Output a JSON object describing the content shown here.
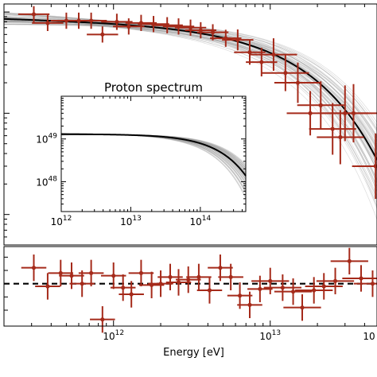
{
  "colors": {
    "data": "#a52a1a",
    "model": "#000000",
    "band": "#9a9a9a",
    "zero": "#000000"
  },
  "chart_data": [
    {
      "type": "scatter",
      "panel": "main-spectrum",
      "xscale": "log",
      "yscale": "log",
      "xlim": [
        200000000000,
        48000000000000
      ],
      "ylim": [
        0.005,
        1.2
      ],
      "xlabel": "",
      "ylabel": "",
      "x": [
        310000000000.0,
        380000000000.0,
        500000000000.0,
        600000000000.0,
        720000000000.0,
        850000000000.0,
        1050000000000.0,
        1250000000000.0,
        1500000000000.0,
        1800000000000.0,
        2200000000000.0,
        2600000000000.0,
        3100000000000.0,
        3600000000000.0,
        4300000000000.0,
        5200000000000.0,
        6200000000000.0,
        7400000000000.0,
        8800000000000.0,
        10500000000000.0,
        12500000000000.0,
        15000000000000.0,
        18000000000000.0,
        21000000000000.0,
        25000000000000.0,
        30000000000000.0,
        47000000000000.0,
        34000000000000.0,
        28000000000000.0
      ],
      "y": [
        0.95,
        0.78,
        0.82,
        0.82,
        0.82,
        0.6,
        0.8,
        0.72,
        0.78,
        0.76,
        0.74,
        0.72,
        0.7,
        0.66,
        0.63,
        0.55,
        0.53,
        0.4,
        0.32,
        0.38,
        0.25,
        0.2,
        0.1,
        0.12,
        0.07,
        0.1,
        0.03,
        0.1,
        0.058
      ],
      "series": [
        {
          "type": "line",
          "points": 60
        }
      ]
    },
    {
      "type": "line",
      "panel": "inset",
      "title": "Proton spectrum",
      "xscale": "log",
      "yscale": "log",
      "xlim": [
        1000000000000.0,
        450000000000000.0
      ],
      "ylim": [
        2e+47,
        1e+50
      ],
      "xticks": [
        {
          "value": 1000000000000.0,
          "label": "10",
          "exp": "12"
        },
        {
          "value": 10000000000000.0,
          "label": "10",
          "exp": "13"
        },
        {
          "value": 100000000000000.0,
          "label": "10",
          "exp": "14"
        }
      ],
      "yticks": [
        {
          "value": 1e+48,
          "label": "10",
          "exp": "48"
        },
        {
          "value": 1e+49,
          "label": "10",
          "exp": "49"
        }
      ],
      "amplitude": 1.3e+49,
      "cutoff": 200000000000000.0
    },
    {
      "type": "scatter",
      "panel": "residuals",
      "xscale": "log",
      "xlim": [
        200000000000,
        48000000000000
      ],
      "ylim": [
        -3.2,
        2.8
      ],
      "xlabel": "Energy [eV]",
      "xticks": [
        {
          "value": 1000000000000.0,
          "label": "10",
          "exp": "12"
        },
        {
          "value": 10000000000000.0,
          "label": "10",
          "exp": "13"
        },
        {
          "value": 45000000000000.0,
          "label": "10",
          "exp": ""
        }
      ],
      "x": [
        310000000000.0,
        380000000000.0,
        460000000000.0,
        540000000000.0,
        630000000000.0,
        720000000000.0,
        850000000000.0,
        1000000000000.0,
        1150000000000.0,
        1300000000000.0,
        1500000000000.0,
        1750000000000.0,
        2000000000000.0,
        2300000000000.0,
        2600000000000.0,
        3000000000000.0,
        3500000000000.0,
        4100000000000.0,
        4800000000000.0,
        5600000000000.0,
        6400000000000.0,
        7400000000000.0,
        8600000000000.0,
        10000000000000.0,
        12000000000000.0,
        14000000000000.0,
        16000000000000.0,
        19000000000000.0,
        22000000000000.0,
        26000000000000.0,
        32000000000000.0,
        45000000000000.0,
        38000000000000.0
      ],
      "y": [
        1.2,
        -0.2,
        0.8,
        0.6,
        0.0,
        0.8,
        -2.7,
        0.6,
        -0.3,
        -0.8,
        0.8,
        -0.1,
        0.0,
        0.5,
        0.1,
        0.3,
        0.5,
        -0.5,
        1.2,
        0.5,
        -0.9,
        -1.6,
        -0.4,
        0.2,
        -0.3,
        -0.6,
        -1.8,
        -0.5,
        -0.2,
        0.2,
        1.7,
        0.0,
        0.4
      ]
    }
  ]
}
